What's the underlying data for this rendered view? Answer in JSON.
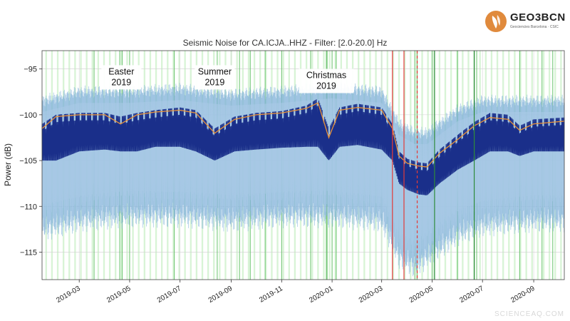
{
  "logo": {
    "text": "GEO3BCN",
    "sub": "Geociencies Barcelona · CSIC",
    "icon": "geo3bcn-logo-icon",
    "accent": "#e08a3c"
  },
  "watermark": "SCIENCEAQ.COM",
  "chart_data": {
    "type": "line",
    "title": "Seismic Noise for CA.ICJA..HHZ - Filter: [2.0-20.0] Hz",
    "xlabel": "",
    "ylabel": "Power (dB)",
    "x_start": "2019-01-15",
    "x_end": "2020-10-08",
    "ylim": [
      -118,
      -93
    ],
    "y_ticks": [
      -95,
      -100,
      -105,
      -110,
      -115
    ],
    "y_tick_labels": [
      "−95",
      "−100",
      "−105",
      "−110",
      "−115"
    ],
    "x_ticks": [
      "2019-03-01",
      "2019-05-01",
      "2019-07-01",
      "2019-09-01",
      "2019-11-01",
      "2020-01-01",
      "2020-03-01",
      "2020-05-01",
      "2020-07-01",
      "2020-09-01"
    ],
    "x_tick_labels": [
      "2019-03",
      "2019-05",
      "2019-07",
      "2019-09",
      "2019-11",
      "2020-01",
      "2020-03",
      "2020-05",
      "2020-07",
      "2020-09"
    ],
    "grid": true,
    "series": [
      {
        "role": "median",
        "color": "#1a2f8a",
        "x": [
          "2019-01-15",
          "2019-02-01",
          "2019-03-01",
          "2019-04-01",
          "2019-04-20",
          "2019-05-10",
          "2019-06-01",
          "2019-07-01",
          "2019-07-20",
          "2019-08-12",
          "2019-09-05",
          "2019-10-01",
          "2019-11-01",
          "2019-12-01",
          "2019-12-15",
          "2019-12-28",
          "2020-01-10",
          "2020-02-01",
          "2020-03-01",
          "2020-03-14",
          "2020-03-22",
          "2020-04-01",
          "2020-04-15",
          "2020-04-25",
          "2020-05-10",
          "2020-06-01",
          "2020-06-21",
          "2020-07-10",
          "2020-08-01",
          "2020-08-15",
          "2020-09-01",
          "2020-10-08"
        ],
        "day": [
          -101.0,
          -100.0,
          -99.8,
          -99.8,
          -100.2,
          -99.8,
          -99.5,
          -99.2,
          -99.5,
          -101.5,
          -100.2,
          -99.8,
          -99.6,
          -99.0,
          -98.2,
          -101.5,
          -99.2,
          -98.8,
          -99.2,
          -101.0,
          -104.0,
          -104.8,
          -105.2,
          -105.3,
          -103.8,
          -102.2,
          -100.8,
          -99.8,
          -100.0,
          -101.2,
          -100.5,
          -100.3
        ],
        "night": [
          -105.0,
          -105.0,
          -104.0,
          -103.8,
          -104.0,
          -104.0,
          -103.5,
          -103.5,
          -104.0,
          -105.0,
          -104.0,
          -103.8,
          -103.6,
          -103.5,
          -103.5,
          -105.0,
          -103.5,
          -103.3,
          -103.8,
          -105.0,
          -107.5,
          -108.2,
          -108.7,
          -108.8,
          -107.5,
          -106.0,
          -105.0,
          -104.0,
          -104.0,
          -104.5,
          -104.0,
          -104.0
        ]
      },
      {
        "role": "smoothed-mean",
        "color": "#e8923a",
        "x": [
          "2019-01-15",
          "2019-02-01",
          "2019-03-01",
          "2019-04-01",
          "2019-04-20",
          "2019-05-10",
          "2019-06-01",
          "2019-07-01",
          "2019-07-20",
          "2019-08-12",
          "2019-09-05",
          "2019-10-01",
          "2019-11-01",
          "2019-12-01",
          "2019-12-15",
          "2019-12-28",
          "2020-01-10",
          "2020-02-01",
          "2020-03-01",
          "2020-03-14",
          "2020-03-22",
          "2020-04-01",
          "2020-04-15",
          "2020-04-25",
          "2020-05-10",
          "2020-06-01",
          "2020-06-21",
          "2020-07-10",
          "2020-08-01",
          "2020-08-15",
          "2020-09-01",
          "2020-10-08"
        ],
        "y": [
          -101.5,
          -100.2,
          -100.0,
          -100.0,
          -101.0,
          -100.0,
          -99.7,
          -99.5,
          -99.8,
          -102.0,
          -100.5,
          -100.0,
          -99.8,
          -99.3,
          -98.7,
          -102.5,
          -99.5,
          -99.2,
          -99.5,
          -101.5,
          -104.5,
          -105.3,
          -105.6,
          -105.7,
          -104.2,
          -102.7,
          -101.2,
          -100.3,
          -100.5,
          -101.7,
          -101.0,
          -100.7
        ]
      },
      {
        "role": "percentile-envelope",
        "color": "#7fb0d8",
        "x": [
          "2019-01-15",
          "2019-03-01",
          "2019-05-01",
          "2019-07-01",
          "2019-09-01",
          "2019-11-01",
          "2020-01-01",
          "2020-03-01",
          "2020-03-22",
          "2020-04-10",
          "2020-04-25",
          "2020-05-10",
          "2020-06-01",
          "2020-07-01",
          "2020-09-01",
          "2020-10-08"
        ],
        "upper": [
          -98.5,
          -97.5,
          -97.5,
          -97.2,
          -97.8,
          -97.5,
          -97.0,
          -97.5,
          -101.0,
          -102.0,
          -102.0,
          -101.0,
          -99.5,
          -98.5,
          -98.5,
          -98.5
        ],
        "lower": [
          -112.5,
          -111.5,
          -111.0,
          -111.0,
          -111.5,
          -111.0,
          -111.0,
          -111.5,
          -115.5,
          -116.5,
          -115.5,
          -114.5,
          -113.0,
          -112.0,
          -111.5,
          -111.5
        ]
      }
    ],
    "annotations": [
      {
        "lines": [
          "Easter",
          "2019"
        ],
        "x": "2019-04-21",
        "y": -95.6
      },
      {
        "lines": [
          "Summer",
          "2019"
        ],
        "x": "2019-08-12",
        "y": -95.6
      },
      {
        "lines": [
          "Christmas",
          "2019"
        ],
        "x": "2019-12-25",
        "y": -96.0
      }
    ],
    "vlines": [
      {
        "date": "2020-03-14",
        "color": "#e23b3b",
        "style": "solid"
      },
      {
        "date": "2020-03-28",
        "color": "#e23b3b",
        "style": "solid"
      },
      {
        "date": "2020-04-13",
        "color": "#e23b3b",
        "style": "dashed"
      },
      {
        "date": "2020-05-04",
        "color": "#2e8b3a",
        "style": "solid"
      },
      {
        "date": "2020-06-21",
        "color": "#2e8b3a",
        "style": "solid"
      }
    ],
    "weekend_shading_color": "#c8f0c4",
    "holiday_line_color": "#5fbf62",
    "holiday_dates": [
      "2019-01-06",
      "2019-03-19",
      "2019-04-19",
      "2019-04-22",
      "2019-05-01",
      "2019-06-24",
      "2019-08-15",
      "2019-09-11",
      "2019-09-24",
      "2019-10-12",
      "2019-11-01",
      "2019-12-06",
      "2019-12-25",
      "2019-12-26",
      "2020-01-01",
      "2020-01-06",
      "2020-04-10",
      "2020-04-13",
      "2020-05-01",
      "2020-06-01",
      "2020-06-24",
      "2020-08-15",
      "2020-09-11",
      "2020-09-24"
    ]
  }
}
